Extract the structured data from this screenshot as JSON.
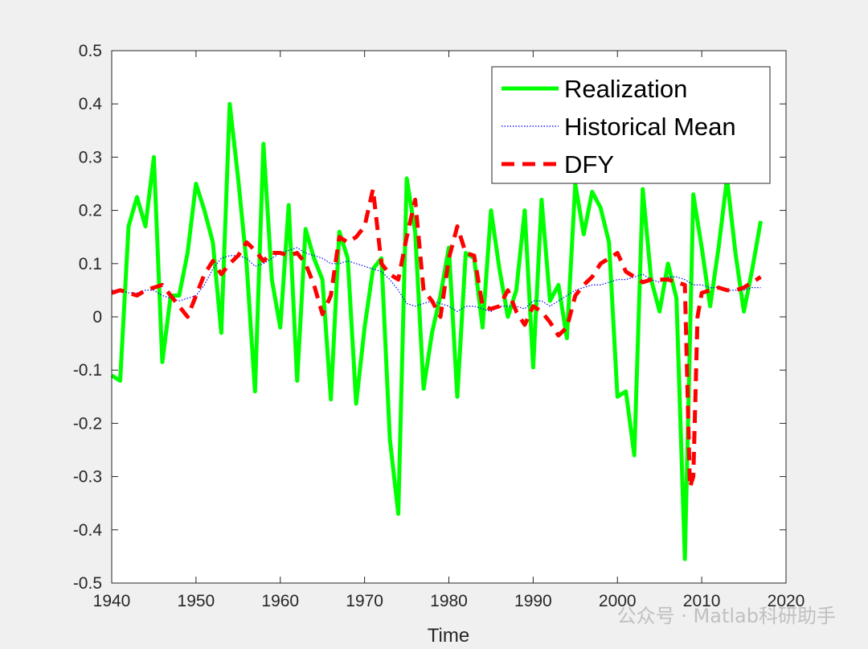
{
  "watermark": "公众号 · Matlab科研助手",
  "colors": {
    "background": "#f0f0f0",
    "plot_bg": "#ffffff",
    "axis": "#262626",
    "realization": "#00ff00",
    "historical_mean": "#0000ff",
    "dfy": "#ff0000"
  },
  "chart_data": {
    "type": "line",
    "title": "",
    "xlabel": "Time",
    "ylabel": "",
    "xlim": [
      1940,
      2020
    ],
    "ylim": [
      -0.5,
      0.5
    ],
    "xticks": [
      1940,
      1950,
      1960,
      1970,
      1980,
      1990,
      2000,
      2010,
      2020
    ],
    "yticks": [
      -0.5,
      -0.4,
      -0.3,
      -0.2,
      -0.1,
      0,
      0.1,
      0.2,
      0.3,
      0.4,
      0.5
    ],
    "xtick_labels": [
      "1940",
      "1950",
      "1960",
      "1970",
      "1980",
      "1990",
      "2000",
      "2010",
      "2020"
    ],
    "ytick_labels": [
      "-0.5",
      "-0.4",
      "-0.3",
      "-0.2",
      "-0.1",
      "0",
      "0.1",
      "0.2",
      "0.3",
      "0.4",
      "0.5"
    ],
    "legend_position": "top-right",
    "series": [
      {
        "name": "Realization",
        "style": "solid",
        "x": [
          1940,
          1941,
          1942,
          1943,
          1944,
          1945,
          1946,
          1947,
          1948,
          1949,
          1950,
          1951,
          1952,
          1953,
          1954,
          1955,
          1956,
          1957,
          1958,
          1959,
          1960,
          1961,
          1962,
          1963,
          1964,
          1965,
          1966,
          1967,
          1968,
          1969,
          1970,
          1971,
          1972,
          1973,
          1974,
          1975,
          1976,
          1977,
          1978,
          1979,
          1980,
          1981,
          1982,
          1983,
          1984,
          1985,
          1986,
          1987,
          1988,
          1989,
          1990,
          1991,
          1992,
          1993,
          1994,
          1995,
          1996,
          1997,
          1998,
          1999,
          2000,
          2001,
          2002,
          2003,
          2004,
          2005,
          2006,
          2007,
          2008,
          2009,
          2010,
          2011,
          2012,
          2013,
          2014,
          2015,
          2016,
          2017
        ],
        "values": [
          -0.11,
          -0.12,
          0.17,
          0.225,
          0.17,
          0.3,
          -0.085,
          0.04,
          0.04,
          0.12,
          0.25,
          0.2,
          0.14,
          -0.03,
          0.4,
          0.26,
          0.1,
          -0.14,
          0.325,
          0.07,
          -0.02,
          0.21,
          -0.12,
          0.165,
          0.11,
          0.07,
          -0.155,
          0.16,
          0.11,
          -0.163,
          -0.02,
          0.09,
          0.11,
          -0.23,
          -0.37,
          0.26,
          0.16,
          -0.135,
          -0.03,
          0.04,
          0.13,
          -0.15,
          0.12,
          0.11,
          -0.02,
          0.2,
          0.09,
          0.0,
          0.05,
          0.2,
          -0.095,
          0.22,
          0.03,
          0.06,
          -0.04,
          0.25,
          0.155,
          0.235,
          0.205,
          0.14,
          -0.15,
          -0.14,
          -0.26,
          0.24,
          0.07,
          0.01,
          0.1,
          0.035,
          -0.455,
          0.23,
          0.13,
          0.02,
          0.13,
          0.26,
          0.12,
          0.01,
          0.09,
          0.18
        ]
      },
      {
        "name": "Historical Mean",
        "style": "dotted",
        "x": [
          1940,
          1941,
          1942,
          1943,
          1944,
          1945,
          1946,
          1947,
          1948,
          1949,
          1950,
          1951,
          1952,
          1953,
          1954,
          1955,
          1956,
          1957,
          1958,
          1959,
          1960,
          1961,
          1962,
          1963,
          1964,
          1965,
          1966,
          1967,
          1968,
          1969,
          1970,
          1971,
          1972,
          1973,
          1974,
          1975,
          1976,
          1977,
          1978,
          1979,
          1980,
          1981,
          1982,
          1983,
          1984,
          1985,
          1986,
          1987,
          1988,
          1989,
          1990,
          1991,
          1992,
          1993,
          1994,
          1995,
          1996,
          1997,
          1998,
          1999,
          2000,
          2001,
          2002,
          2003,
          2004,
          2005,
          2006,
          2007,
          2008,
          2009,
          2010,
          2011,
          2012,
          2013,
          2014,
          2015,
          2016,
          2017
        ],
        "values": [
          0.05,
          0.05,
          0.045,
          0.045,
          0.05,
          0.05,
          0.04,
          0.035,
          0.03,
          0.035,
          0.04,
          0.06,
          0.09,
          0.11,
          0.115,
          0.115,
          0.11,
          0.095,
          0.1,
          0.11,
          0.12,
          0.125,
          0.13,
          0.12,
          0.115,
          0.11,
          0.1,
          0.1,
          0.105,
          0.1,
          0.095,
          0.09,
          0.085,
          0.07,
          0.05,
          0.025,
          0.02,
          0.025,
          0.03,
          0.025,
          0.02,
          0.01,
          0.02,
          0.02,
          0.015,
          0.01,
          0.02,
          0.02,
          0.02,
          0.015,
          0.03,
          0.03,
          0.02,
          0.03,
          0.04,
          0.05,
          0.055,
          0.06,
          0.06,
          0.065,
          0.07,
          0.07,
          0.075,
          0.08,
          0.07,
          0.065,
          0.075,
          0.075,
          0.07,
          0.06,
          0.06,
          0.055,
          0.055,
          0.05,
          0.05,
          0.05,
          0.055,
          0.055
        ]
      },
      {
        "name": "DFY",
        "style": "dashed",
        "x": [
          1940,
          1941,
          1942,
          1943,
          1944,
          1945,
          1946,
          1947,
          1948,
          1949,
          1950,
          1951,
          1952,
          1953,
          1954,
          1955,
          1956,
          1957,
          1958,
          1959,
          1960,
          1961,
          1962,
          1963,
          1964,
          1965,
          1966,
          1967,
          1968,
          1969,
          1970,
          1971,
          1972,
          1973,
          1974,
          1975,
          1976,
          1977,
          1978,
          1979,
          1980,
          1981,
          1982,
          1983,
          1984,
          1985,
          1986,
          1987,
          1988,
          1989,
          1990,
          1991,
          1992,
          1993,
          1994,
          1995,
          1996,
          1997,
          1998,
          1999,
          2000,
          2001,
          2002,
          2003,
          2004,
          2005,
          2006,
          2007,
          2008,
          2008.6,
          2009,
          2009.5,
          2010,
          2011,
          2012,
          2013,
          2014,
          2015,
          2016,
          2017
        ],
        "values": [
          0.045,
          0.05,
          0.045,
          0.04,
          0.05,
          0.055,
          0.06,
          0.04,
          0.02,
          0.0,
          0.04,
          0.08,
          0.105,
          0.08,
          0.1,
          0.115,
          0.14,
          0.125,
          0.105,
          0.12,
          0.12,
          0.115,
          0.12,
          0.1,
          0.06,
          0.005,
          0.04,
          0.15,
          0.14,
          0.15,
          0.17,
          0.24,
          0.1,
          0.08,
          0.07,
          0.15,
          0.22,
          0.05,
          0.03,
          0.0,
          0.11,
          0.17,
          0.12,
          0.115,
          0.02,
          0.015,
          0.02,
          0.05,
          0.01,
          -0.015,
          0.02,
          0.01,
          -0.01,
          -0.035,
          -0.02,
          0.04,
          0.06,
          0.075,
          0.1,
          0.11,
          0.12,
          0.085,
          0.075,
          0.065,
          0.07,
          0.07,
          0.07,
          0.065,
          0.06,
          -0.32,
          -0.3,
          0.0,
          0.045,
          0.05,
          0.055,
          0.05,
          0.05,
          0.055,
          0.065,
          0.075
        ]
      }
    ]
  }
}
